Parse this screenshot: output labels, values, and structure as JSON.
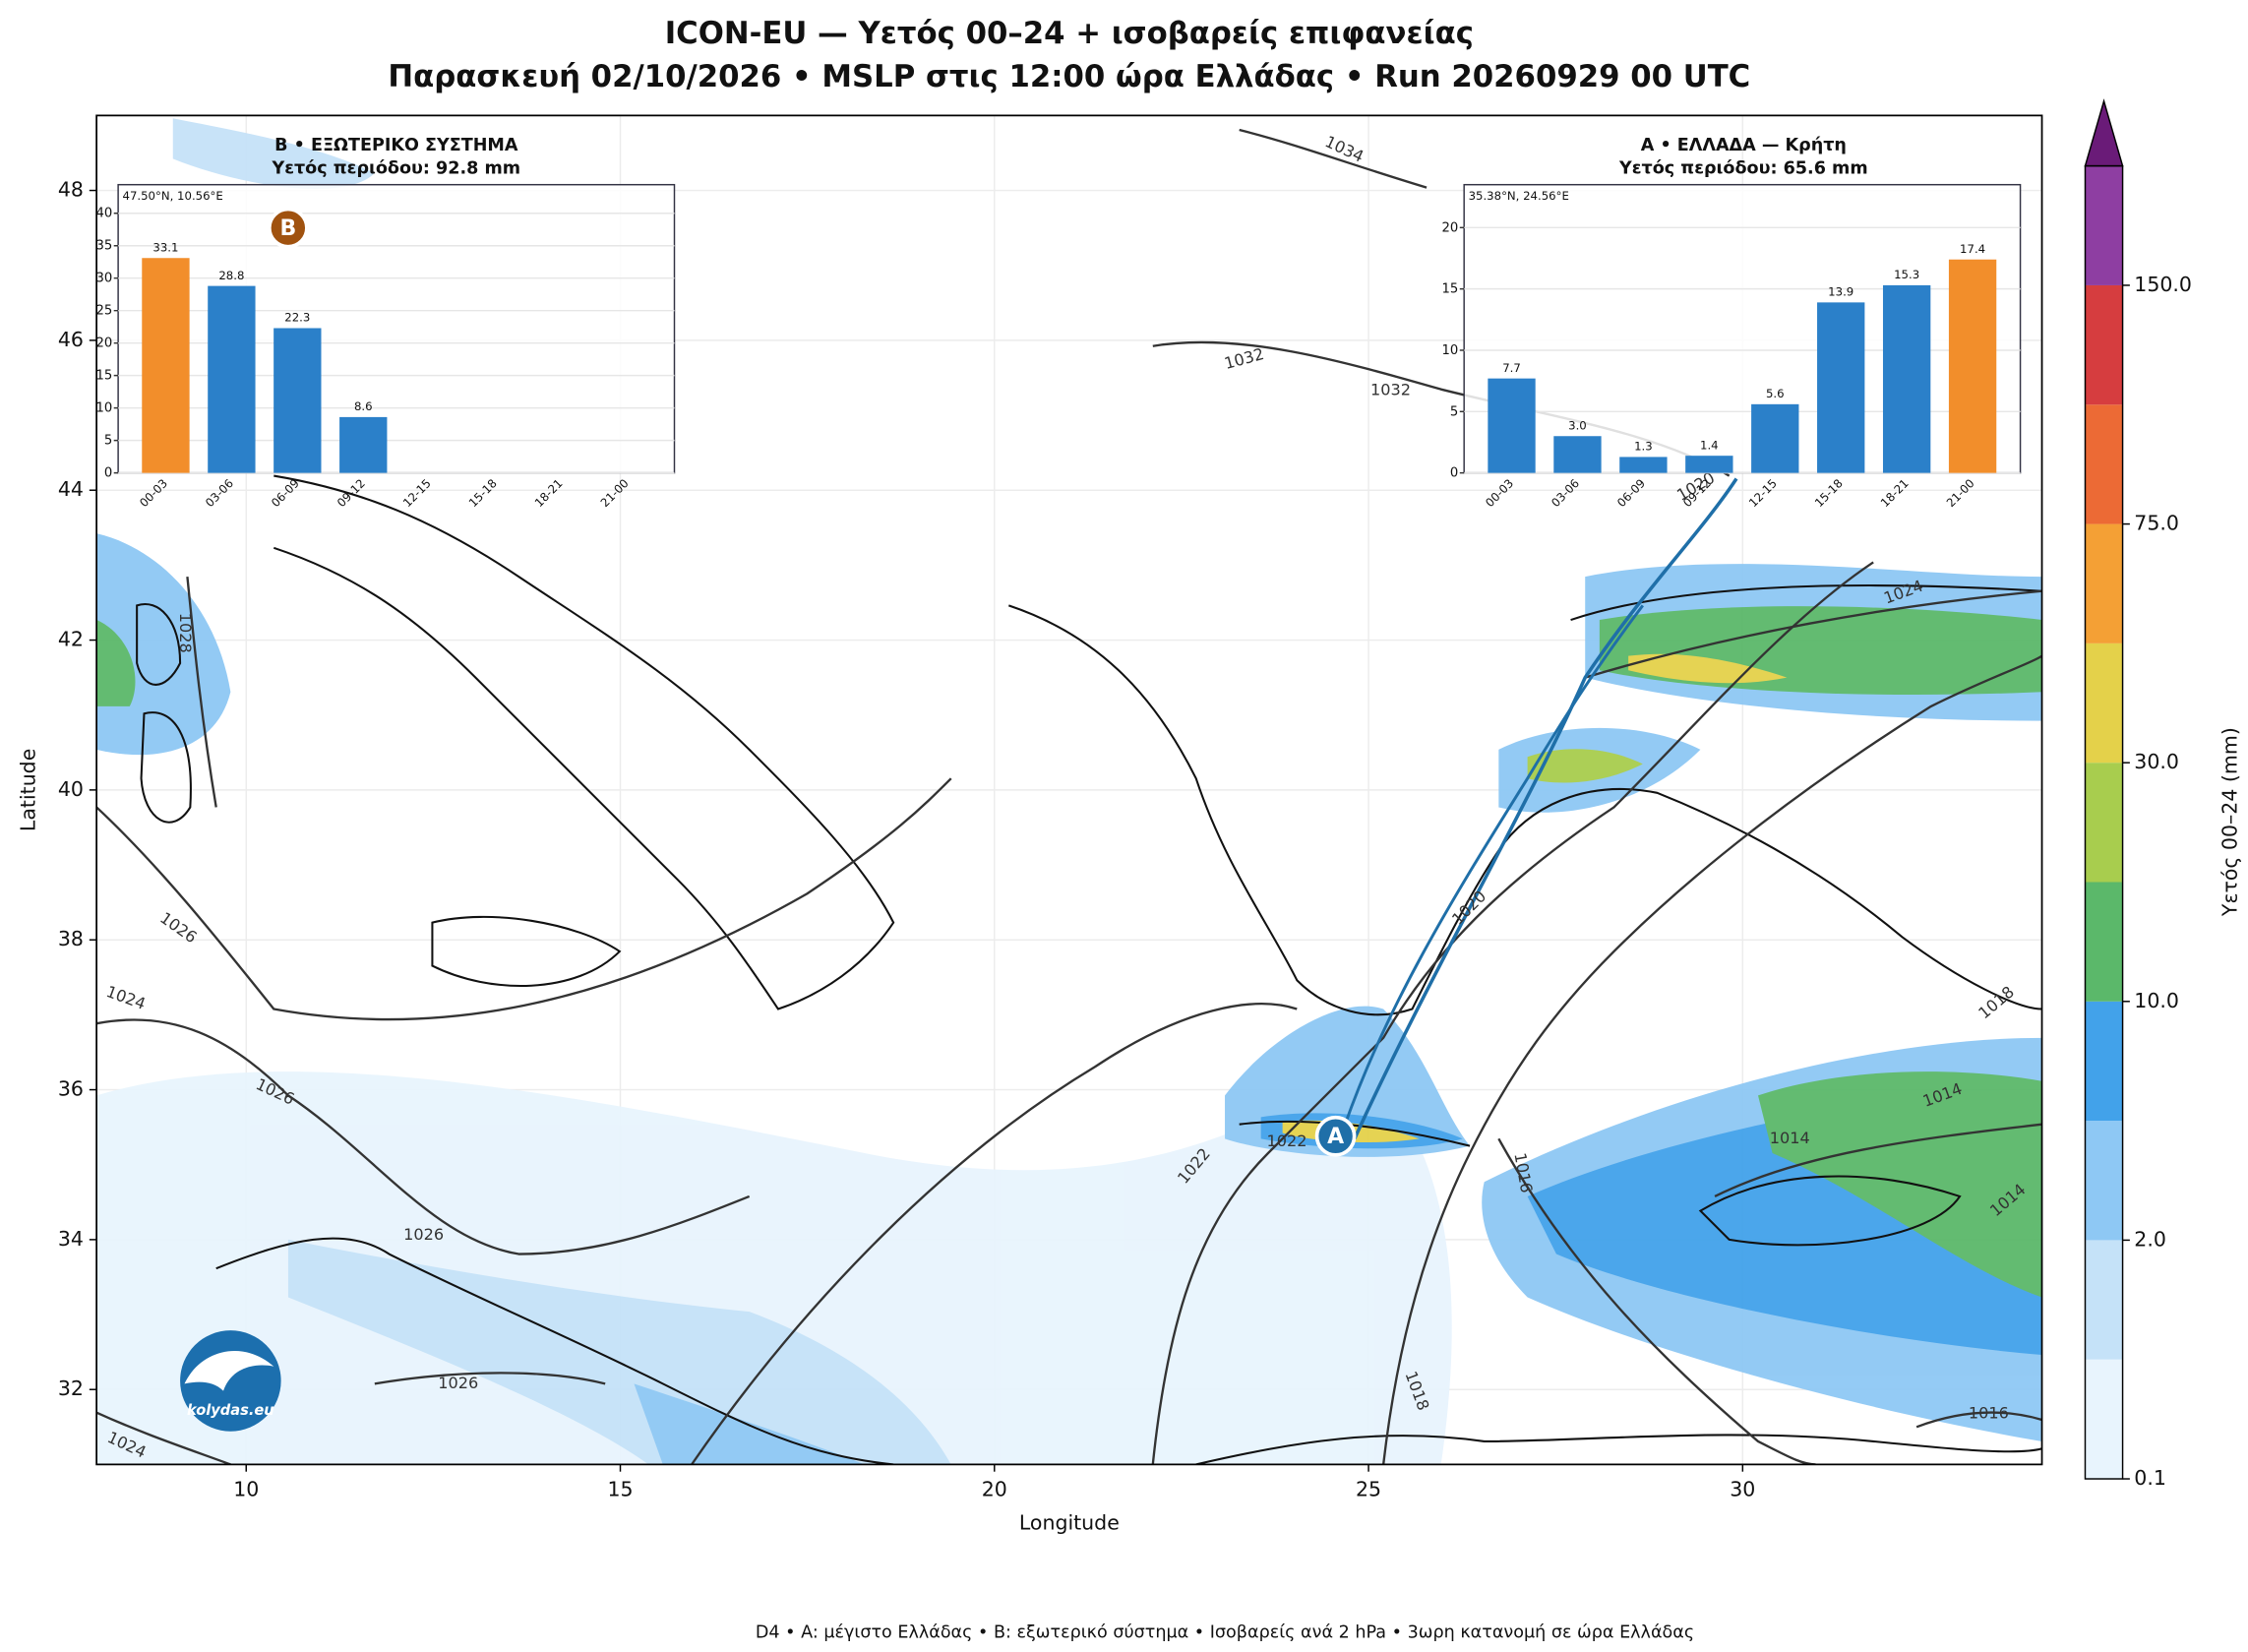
{
  "title": "ICON-EU — Υετός 00–24 + ισοβαρείς επιφανείας",
  "subtitle": "Παρασκευή 02/10/2026 • MSLP στις 12:00 ώρα Ελλάδας • Run 20260929 00 UTC",
  "footer": "D4 • A: μέγιστο Ελλάδας • B: εξωτερικό σύστημα • Ισοβαρείς ανά 2 hPa • 3ωρη κατανομή σε ώρα Ελλάδας",
  "map": {
    "xlabel": "Longitude",
    "ylabel": "Latitude",
    "xlim": [
      8,
      34
    ],
    "ylim": [
      31,
      49
    ],
    "xticks": [
      10,
      15,
      20,
      25,
      30
    ],
    "yticks": [
      32,
      34,
      36,
      38,
      40,
      42,
      44,
      46,
      48
    ],
    "grid": true,
    "logo": "kolydas.eu",
    "markers": [
      {
        "label": "A",
        "lon": 24.56,
        "lat": 35.38,
        "color": "#1f6fa8"
      },
      {
        "label": "B",
        "lon": 10.56,
        "lat": 47.5,
        "color": "#a0520f"
      }
    ],
    "isobar_labels": [
      1034,
      1032,
      1032,
      1028,
      1026,
      1024,
      1026,
      1026,
      1026,
      1024,
      1022,
      1022,
      1020,
      1024,
      1018,
      1014,
      1014,
      1016,
      1014,
      1018,
      1016,
      1020
    ],
    "colorbar": {
      "label": "Υετός 00–24 (mm)",
      "levels": [
        0.1,
        1,
        2,
        5,
        10,
        20,
        30,
        50,
        75,
        100,
        150,
        200
      ],
      "colors": [
        "#e8f4fd",
        "#c5e2f8",
        "#8ec8f4",
        "#42a2ea",
        "#5bb86a",
        "#a8cd4e",
        "#e4d14a",
        "#f4a035",
        "#ec6a35",
        "#d63d3f",
        "#8e3ea2"
      ],
      "extend_color": "#6a1b78",
      "ticks": [
        0.1,
        {
          "value": 2,
          "label": "2.0"
        },
        {
          "value": 10,
          "label": "10.0"
        },
        {
          "value": 30,
          "label": "30.0"
        },
        {
          "value": 75,
          "label": "75.0"
        },
        {
          "value": 150,
          "label": "150.0"
        }
      ]
    }
  },
  "chart_data": [
    {
      "type": "bar",
      "title": "B • ΕΞΩΤΕΡΙΚΟ ΣΥΣΤΗΜΑ",
      "subtitle": "Υετός περιόδου: 92.8 mm",
      "note": "47.50°N, 10.56°E",
      "categories": [
        "00-03",
        "03-06",
        "06-09",
        "09-12",
        "12-15",
        "15-18",
        "18-21",
        "21-00"
      ],
      "values": [
        33.1,
        28.8,
        22.3,
        8.6,
        null,
        null,
        null,
        null
      ],
      "value_labels": [
        "33.1",
        "28.8",
        "22.3",
        "8.6",
        null,
        null,
        null,
        null
      ],
      "colors": [
        "#f28e2b",
        "#2b80c9",
        "#2b80c9",
        "#2b80c9",
        "#2b80c9",
        "#2b80c9",
        "#2b80c9",
        "#2b80c9"
      ],
      "ylim": [
        0,
        44.4
      ],
      "yticks": [
        0,
        5,
        10,
        15,
        20,
        25,
        30,
        35,
        40
      ],
      "grid": true
    },
    {
      "type": "bar",
      "title": "A • ΕΛΛΑΔΑ — Κρήτη",
      "subtitle": "Υετός περιόδου: 65.6 mm",
      "note": "35.38°N, 24.56°E",
      "categories": [
        "00-03",
        "03-06",
        "06-09",
        "09-12",
        "12-15",
        "15-18",
        "18-21",
        "21-00"
      ],
      "values": [
        7.7,
        3.0,
        1.3,
        1.4,
        5.6,
        13.9,
        15.3,
        17.4
      ],
      "value_labels": [
        "7.7",
        "3.0",
        "1.3",
        "1.4",
        "5.6",
        "13.9",
        "15.3",
        "17.4"
      ],
      "colors": [
        "#2b80c9",
        "#2b80c9",
        "#2b80c9",
        "#2b80c9",
        "#2b80c9",
        "#2b80c9",
        "#2b80c9",
        "#f28e2b"
      ],
      "ylim": [
        0,
        23.5
      ],
      "yticks": [
        0,
        5,
        10,
        15,
        20
      ],
      "grid": true
    }
  ]
}
